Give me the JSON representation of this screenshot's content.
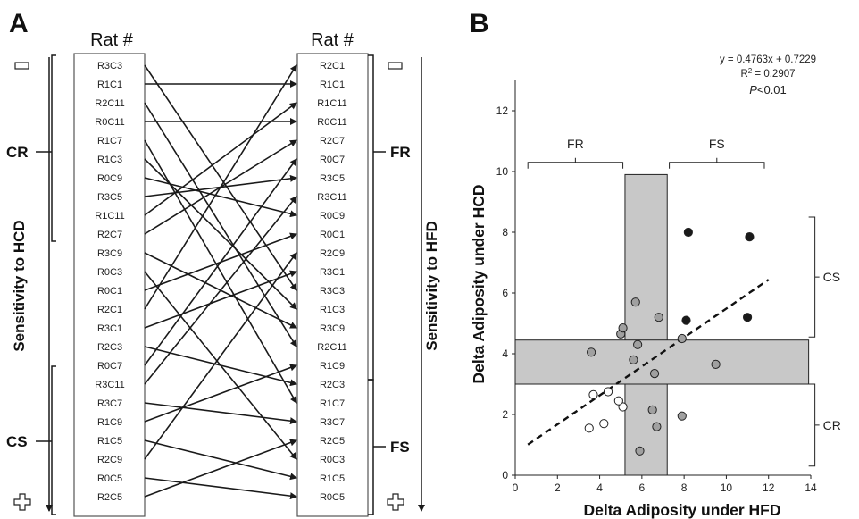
{
  "panel_a": {
    "letter": "A",
    "left_header": "Rat #",
    "right_header": "Rat #",
    "left_axis_label": "Sensitivity to HCD",
    "right_axis_label": "Sensitivity to HFD",
    "left_groups": [
      "CR",
      "CS"
    ],
    "right_groups": [
      "FR",
      "FS"
    ],
    "top_symbol": "minus",
    "bottom_symbol": "plus",
    "left_ids": [
      "R3C3",
      "R1C1",
      "R2C11",
      "R0C11",
      "R1C7",
      "R1C3",
      "R0C9",
      "R3C5",
      "R1C11",
      "R2C7",
      "R3C9",
      "R0C3",
      "R0C1",
      "R2C1",
      "R3C1",
      "R2C3",
      "R0C7",
      "R3C11",
      "R3C7",
      "R1C9",
      "R1C5",
      "R2C9",
      "R0C5",
      "R2C5"
    ],
    "right_ids": [
      "R2C1",
      "R1C1",
      "R1C11",
      "R0C11",
      "R2C7",
      "R0C7",
      "R3C5",
      "R3C11",
      "R0C9",
      "R0C1",
      "R2C9",
      "R3C1",
      "R3C3",
      "R1C3",
      "R3C9",
      "R2C11",
      "R1C9",
      "R2C3",
      "R1C7",
      "R3C7",
      "R2C5",
      "R0C3",
      "R1C5",
      "R0C5"
    ]
  },
  "chart_data": {
    "type": "scatter",
    "panel_letter": "B",
    "xlabel": "Delta Adiposity under HFD",
    "ylabel": "Delta Adiposity under HCD",
    "xlim": [
      0,
      14
    ],
    "ylim": [
      0,
      13
    ],
    "x_ticks": [
      0,
      2,
      4,
      6,
      8,
      10,
      12,
      14
    ],
    "y_ticks": [
      0,
      2,
      4,
      6,
      8,
      10,
      12
    ],
    "grid": false,
    "equation": "y = 0.4763x + 0.7229",
    "r2_label": "R",
    "r2_sup": "2",
    "r2_value": " = 0.2907",
    "p_label": "P",
    "p_value": "<0.01",
    "fit": {
      "slope": 0.4763,
      "intercept": 0.7229,
      "x_range": [
        0.6,
        12
      ]
    },
    "bands": [
      {
        "orientation": "vertical",
        "x_from": 5.2,
        "x_to": 7.2,
        "y_from": 0,
        "y_to": 9.9
      },
      {
        "orientation": "horizontal",
        "y_from": 3.0,
        "y_to": 4.45,
        "x_from": 0,
        "x_to": 13.9
      }
    ],
    "brackets": {
      "FR": {
        "label": "FR",
        "x_from": 0.6,
        "x_to": 5.1,
        "y": 10.3
      },
      "FS": {
        "label": "FS",
        "x_from": 7.3,
        "x_to": 11.8,
        "y": 10.3
      },
      "CS": {
        "label": "CS",
        "y_from": 4.55,
        "y_to": 8.5,
        "x": 13.9
      },
      "CR": {
        "label": "CR",
        "y_from": 0.3,
        "y_to": 3.0,
        "x": 13.9
      }
    },
    "series": [
      {
        "fill": "#ffffff",
        "points": [
          [
            3.7,
            2.65
          ],
          [
            4.4,
            2.75
          ],
          [
            5.1,
            2.25
          ],
          [
            4.9,
            2.45
          ],
          [
            4.2,
            1.7
          ],
          [
            3.5,
            1.55
          ]
        ]
      },
      {
        "fill": "#a0a0a0",
        "points": [
          [
            3.6,
            4.05
          ],
          [
            5.0,
            4.65
          ],
          [
            5.1,
            4.85
          ],
          [
            5.7,
            5.7
          ],
          [
            5.8,
            4.3
          ],
          [
            5.6,
            3.8
          ],
          [
            6.8,
            5.2
          ],
          [
            6.5,
            2.15
          ],
          [
            6.6,
            3.35
          ],
          [
            6.7,
            1.6
          ],
          [
            5.9,
            0.8
          ],
          [
            7.9,
            4.5
          ],
          [
            7.9,
            1.95
          ],
          [
            9.5,
            3.65
          ]
        ]
      },
      {
        "fill": "#1a1a1a",
        "points": [
          [
            8.2,
            8.0
          ],
          [
            11.1,
            7.85
          ],
          [
            8.1,
            5.1
          ],
          [
            11.0,
            5.2
          ]
        ]
      }
    ]
  }
}
